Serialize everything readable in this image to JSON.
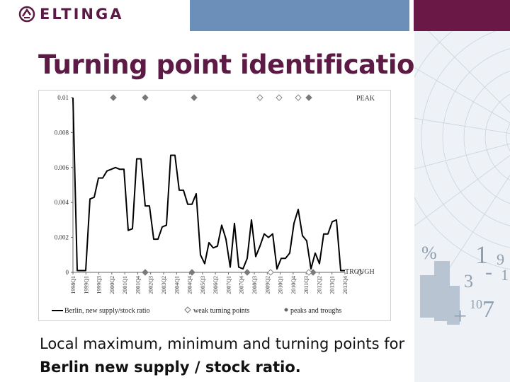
{
  "header": {
    "logo_text": "ELTINGA",
    "colors": {
      "blue_bar": "#6b8fb8",
      "purple_bar": "#6a1846",
      "title": "#5c1a45"
    }
  },
  "slide": {
    "title": "Turning point identification",
    "caption_plain": "Local maximum, minimum and turning points for ",
    "caption_bold": "Berlin new supply / stock ratio."
  },
  "decor": {
    "glyphs": [
      "%",
      "1",
      "9",
      "3",
      "-",
      "1",
      "+",
      "10",
      "7"
    ]
  },
  "chart_data": {
    "type": "line",
    "ylim": [
      0,
      0.01
    ],
    "yticks": [
      "0",
      "0.002",
      "0.004",
      "0.006",
      "0.008",
      "0.01"
    ],
    "xticks": [
      "1998Q1",
      "1999Q1",
      "1999Q3",
      "2000Q2",
      "2001Q1",
      "2001Q4",
      "2002Q3",
      "2003Q2",
      "2004Q1",
      "2004Q4",
      "2005Q3",
      "2006Q2",
      "2007Q1",
      "2007Q4",
      "2008Q3",
      "2009Q2",
      "2010Q1",
      "2010Q4",
      "2011Q3",
      "2012Q2",
      "2013Q1",
      "2013Q4"
    ],
    "peak_label": "PEAK",
    "trough_label": "TROUGH",
    "series": [
      {
        "name": "Berlin, new supply/stock ratio",
        "color": "#000000",
        "values": [
          0.01,
          0.0001,
          0.0001,
          0.0001,
          0.0042,
          0.0043,
          0.0054,
          0.0054,
          0.0058,
          0.0059,
          0.006,
          0.0059,
          0.0059,
          0.0024,
          0.0025,
          0.0065,
          0.0065,
          0.0038,
          0.0038,
          0.0019,
          0.0019,
          0.0026,
          0.0027,
          0.0067,
          0.0067,
          0.0047,
          0.0047,
          0.0039,
          0.0039,
          0.0045,
          0.001,
          0.0005,
          0.0017,
          0.0014,
          0.0015,
          0.0027,
          0.0019,
          0.0003,
          0.0028,
          0.0003,
          0.0002,
          0.0008,
          0.003,
          0.0009,
          0.0015,
          0.0022,
          0.002,
          0.0022,
          0.0002,
          0.0008,
          0.0008,
          0.0011,
          0.0028,
          0.0036,
          0.0021,
          0.0018,
          0.0002,
          0.0011,
          0.0005,
          0.0022,
          0.0022,
          0.0029,
          0.003,
          0.0001,
          0.0001
        ]
      }
    ],
    "peaks": [
      9.5,
      17,
      28.5,
      55.5
    ],
    "weak_peaks": [
      44,
      48.5,
      53
    ],
    "troughs": [
      17,
      28,
      41,
      56.5,
      67.5,
      81
    ],
    "weak_troughs": [
      46.5,
      55.5,
      67.5,
      79
    ],
    "legend": [
      {
        "label": "Berlin, new supply/stock ratio",
        "marker": "line"
      },
      {
        "label": "weak turning points",
        "marker": "open-diamond"
      },
      {
        "label": "peaks and troughs",
        "marker": "filled-diamond"
      }
    ]
  }
}
